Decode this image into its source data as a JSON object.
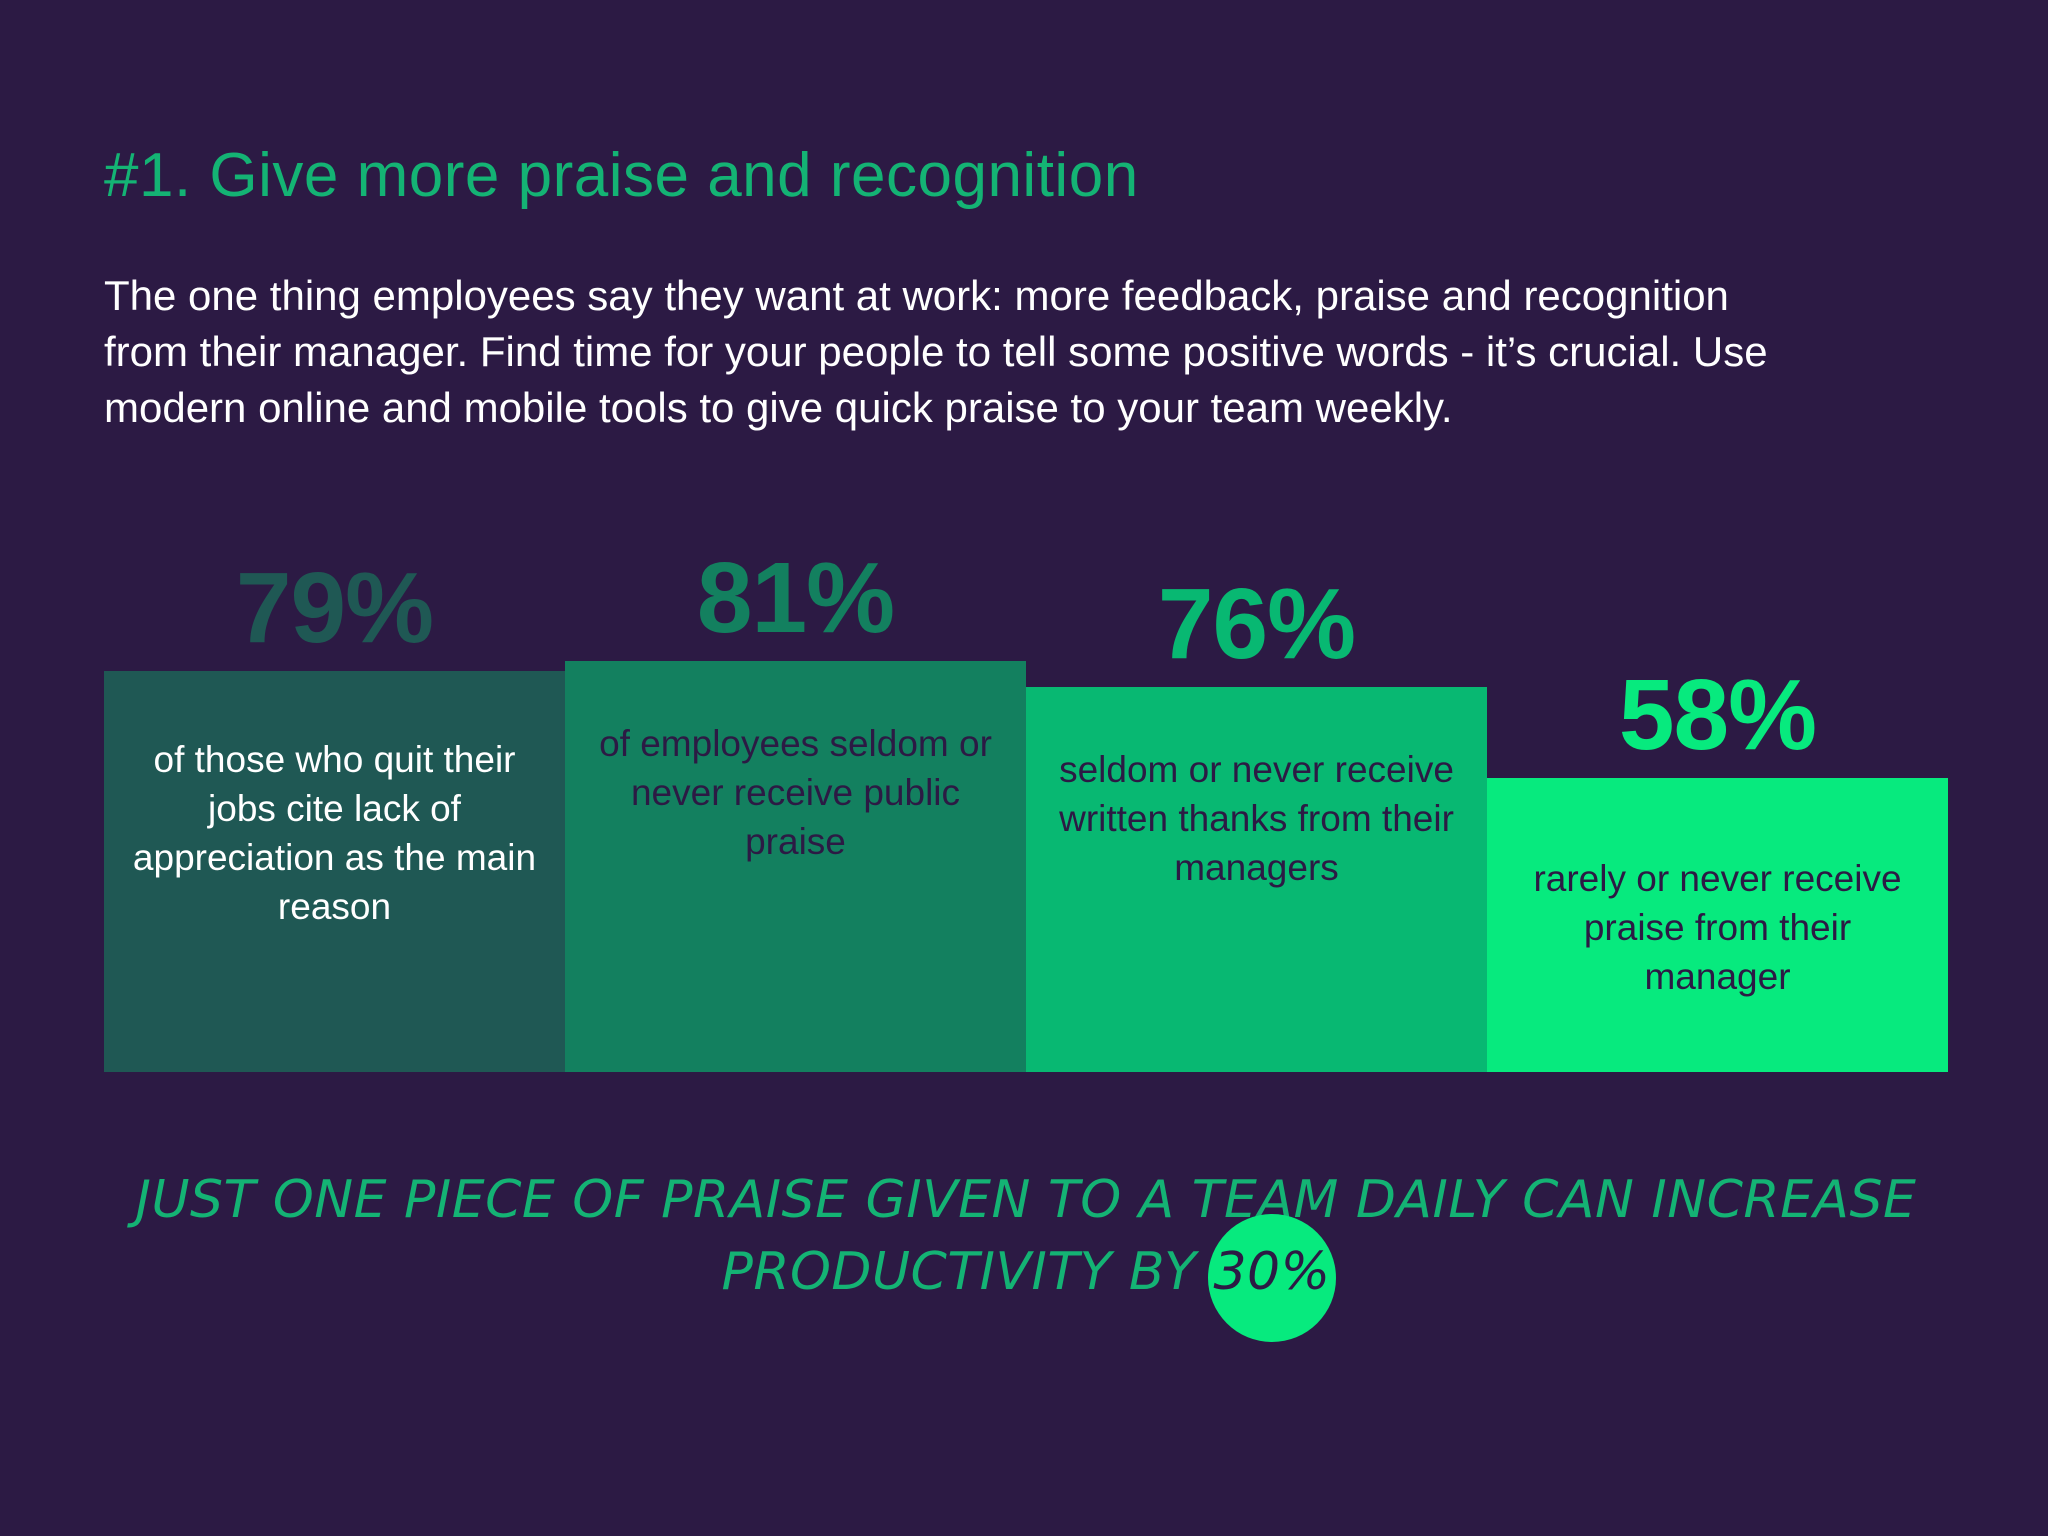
{
  "heading": {
    "title": "#1. Give more praise and recognition"
  },
  "intro": {
    "lines": [
      "The one thing employees say they want at work: more feedback, praise and recognition",
      "from their manager. Find time for your people to tell some positive words - it’s crucial. Use",
      "modern online and mobile tools to give quick praise to your team weekly."
    ]
  },
  "colors": {
    "background": "#2c1a44",
    "accent": "#14b374",
    "highlight": "#07ea7e"
  },
  "stats": [
    {
      "value": "79%",
      "percent": 79,
      "description": "of those who quit their jobs cite lack of appreciation as the main reason",
      "box_color": "#1f5854",
      "value_color": "#1f5854",
      "text_color": "#ffffff"
    },
    {
      "value": "81%",
      "percent": 81,
      "description": "of employees seldom or never receive public praise",
      "box_color": "#13805f",
      "value_color": "#13805f",
      "text_color": "#2c1a44"
    },
    {
      "value": "76%",
      "percent": 76,
      "description": "seldom or never receive written thanks from their managers",
      "box_color": "#08b872",
      "value_color": "#08b872",
      "text_color": "#2c1a44"
    },
    {
      "value": "58%",
      "percent": 58,
      "description": "rarely or never receive praise from their manager",
      "box_color": "#07ea7e",
      "value_color": "#07ea7e",
      "text_color": "#2c1a44"
    }
  ],
  "callout": {
    "line1": "JUST ONE PIECE OF PRAISE GIVEN TO A TEAM DAILY CAN INCREASE",
    "line2_prefix": "PRODUCTIVITY BY ",
    "line2_accent": "30%"
  }
}
